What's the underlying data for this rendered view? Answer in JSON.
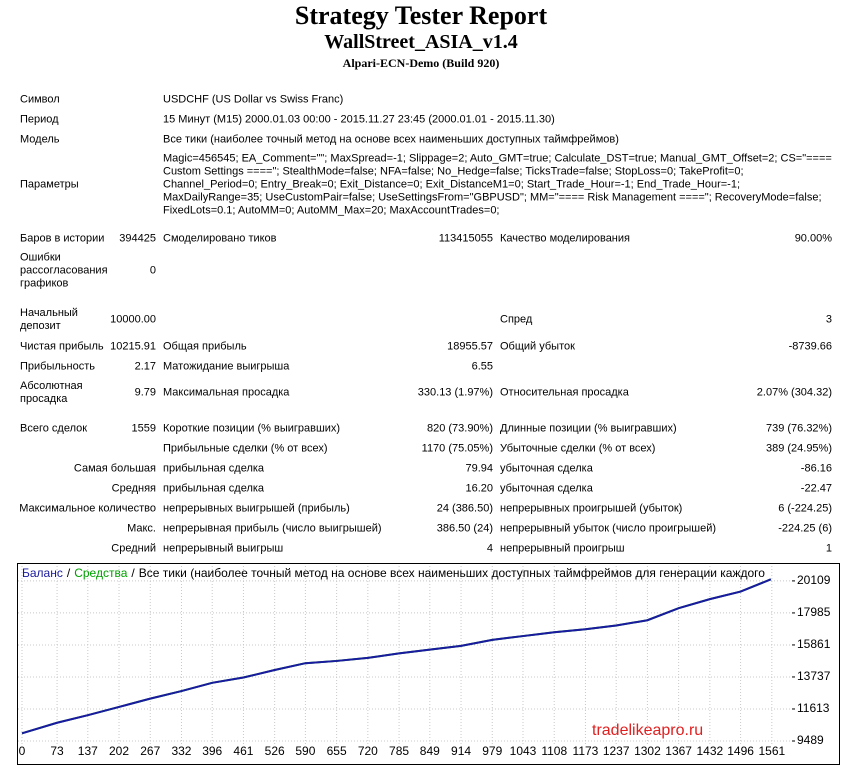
{
  "header": {
    "title": "Strategy Tester Report",
    "expert": "WallStreet_ASIA_v1.4",
    "server": "Alpari-ECN-Demo (Build 920)"
  },
  "info": [
    {
      "label": "Символ",
      "value": "USDCHF (US Dollar vs Swiss Franc)"
    },
    {
      "label": "Период",
      "value": "15 Минут (M15) 2000.01.03 00:00 - 2015.11.27 23:45 (2000.01.01 - 2015.11.30)"
    },
    {
      "label": "Модель",
      "value": "Все тики (наиболее точный метод на основе всех наименьших доступных таймфреймов)"
    },
    {
      "label": "Параметры",
      "value": [
        "Magic=456545; EA_Comment=\"\"; MaxSpread=-1; Slippage=2; Auto_GMT=true; Calculate_DST=true; Manual_GMT_Offset=2; CS=\"====",
        "Custom Settings ====\"; StealthMode=false; NFA=false; No_Hedge=false; TicksTrade=false; StopLoss=0; TakeProfit=0;",
        "Channel_Period=0; Entry_Break=0; Exit_Distance=0; Exit_DistanceM1=0; Start_Trade_Hour=-1; End_Trade_Hour=-1;",
        "MaxDailyRange=35; UseCustomPair=false; UseSettingsFrom=\"GBPUSD\"; MM=\"==== Risk Management ====\"; RecoveryMode=false;",
        "FixedLots=0.1; AutoMM=0; AutoMM_Max=20; MaxAccountTrades=0;"
      ]
    }
  ],
  "stats": [
    {
      "l1": "Баров в истории",
      "v1": "394425",
      "l2": "Смоделировано тиков",
      "v2": "113415055",
      "l3": "Качество моделирования",
      "v3": "90.00%"
    },
    {
      "l1": "Ошибки рассогласования графиков",
      "v1": "0"
    },
    {
      "l1": "Начальный депозит",
      "v1": "10000.00",
      "l3": "Спред",
      "v3": "3"
    },
    {
      "l1": "Чистая прибыль",
      "v1": "10215.91",
      "l2": "Общая прибыль",
      "v2": "18955.57",
      "l3": "Общий убыток",
      "v3": "-8739.66"
    },
    {
      "l1": "Прибыльность",
      "v1": "2.17",
      "l2": "Матожидание выигрыша",
      "v2": "6.55"
    },
    {
      "l1": "Абсолютная просадка",
      "v1": "9.79",
      "l2": "Максимальная просадка",
      "v2": "330.13 (1.97%)",
      "l3": "Относительная просадка",
      "v3": "2.07% (304.32)"
    },
    {
      "l1": "Всего сделок",
      "v1": "1559",
      "l2": "Короткие позиции (% выигравших)",
      "v2": "820 (73.90%)",
      "l3": "Длинные позиции (% выигравших)",
      "v3": "739 (76.32%)"
    },
    {
      "l2": "Прибыльные сделки (% от всех)",
      "v2": "1170 (75.05%)",
      "l3": "Убыточные сделки (% от всех)",
      "v3": "389 (24.95%)"
    },
    {
      "l1": "Самая большая",
      "l2": "прибыльная сделка",
      "v2": "79.94",
      "l3": "убыточная сделка",
      "v3": "-86.16"
    },
    {
      "l1": "Средняя",
      "l2": "прибыльная сделка",
      "v2": "16.20",
      "l3": "убыточная сделка",
      "v3": "-22.47"
    },
    {
      "l1": "Максимальное количество",
      "l2": "непрерывных выигрышей (прибыль)",
      "v2": "24 (386.50)",
      "l3": "непрерывных проигрышей (убыток)",
      "v3": "6 (-224.25)"
    },
    {
      "l1": "Макс.",
      "l2": "непрерывная прибыль (число выигрышей)",
      "v2": "386.50 (24)",
      "l3": "непрерывный убыток (число проигрышей)",
      "v3": "-224.25 (6)"
    },
    {
      "l1": "Средний",
      "l2": "непрерывный выигрыш",
      "v2": "4",
      "l3": "непрерывный проигрыш",
      "v3": "1"
    }
  ],
  "chart_data": {
    "type": "line",
    "title": "Все тики (наиболее точный метод на основе всех наименьших доступных таймфреймов для генерации каждого",
    "separator": "/",
    "x": [
      0,
      73,
      137,
      202,
      267,
      332,
      396,
      461,
      526,
      590,
      655,
      720,
      785,
      849,
      914,
      979,
      1043,
      1108,
      1173,
      1237,
      1302,
      1367,
      1432,
      1496,
      1559
    ],
    "series": [
      {
        "name": "Средства",
        "color": "#00a000",
        "values": [
          10000,
          10700,
          11200,
          11750,
          12300,
          12800,
          13350,
          13700,
          14200,
          14650,
          14800,
          15000,
          15300,
          15550,
          15800,
          16200,
          16450,
          16700,
          16900,
          17150,
          17500,
          18300,
          18900,
          19400,
          20215
        ]
      },
      {
        "name": "Баланс",
        "color": "#1a1aa0",
        "values": [
          10000,
          10700,
          11200,
          11750,
          12300,
          12800,
          13350,
          13700,
          14200,
          14650,
          14800,
          15000,
          15300,
          15550,
          15800,
          16200,
          16450,
          16700,
          16900,
          17150,
          17500,
          18300,
          18900,
          19400,
          20215
        ]
      }
    ],
    "xlim": [
      0,
      1603
    ],
    "xticks": [
      0,
      73,
      137,
      202,
      267,
      332,
      396,
      461,
      526,
      590,
      655,
      720,
      785,
      849,
      914,
      979,
      1043,
      1108,
      1173,
      1237,
      1302,
      1367,
      1432,
      1496,
      1561
    ],
    "ylim": [
      9290,
      20700
    ],
    "yticks": [
      9489,
      11613,
      13737,
      15861,
      17985,
      20109
    ],
    "grid": true,
    "watermark": "tradelikeapro.ru"
  }
}
